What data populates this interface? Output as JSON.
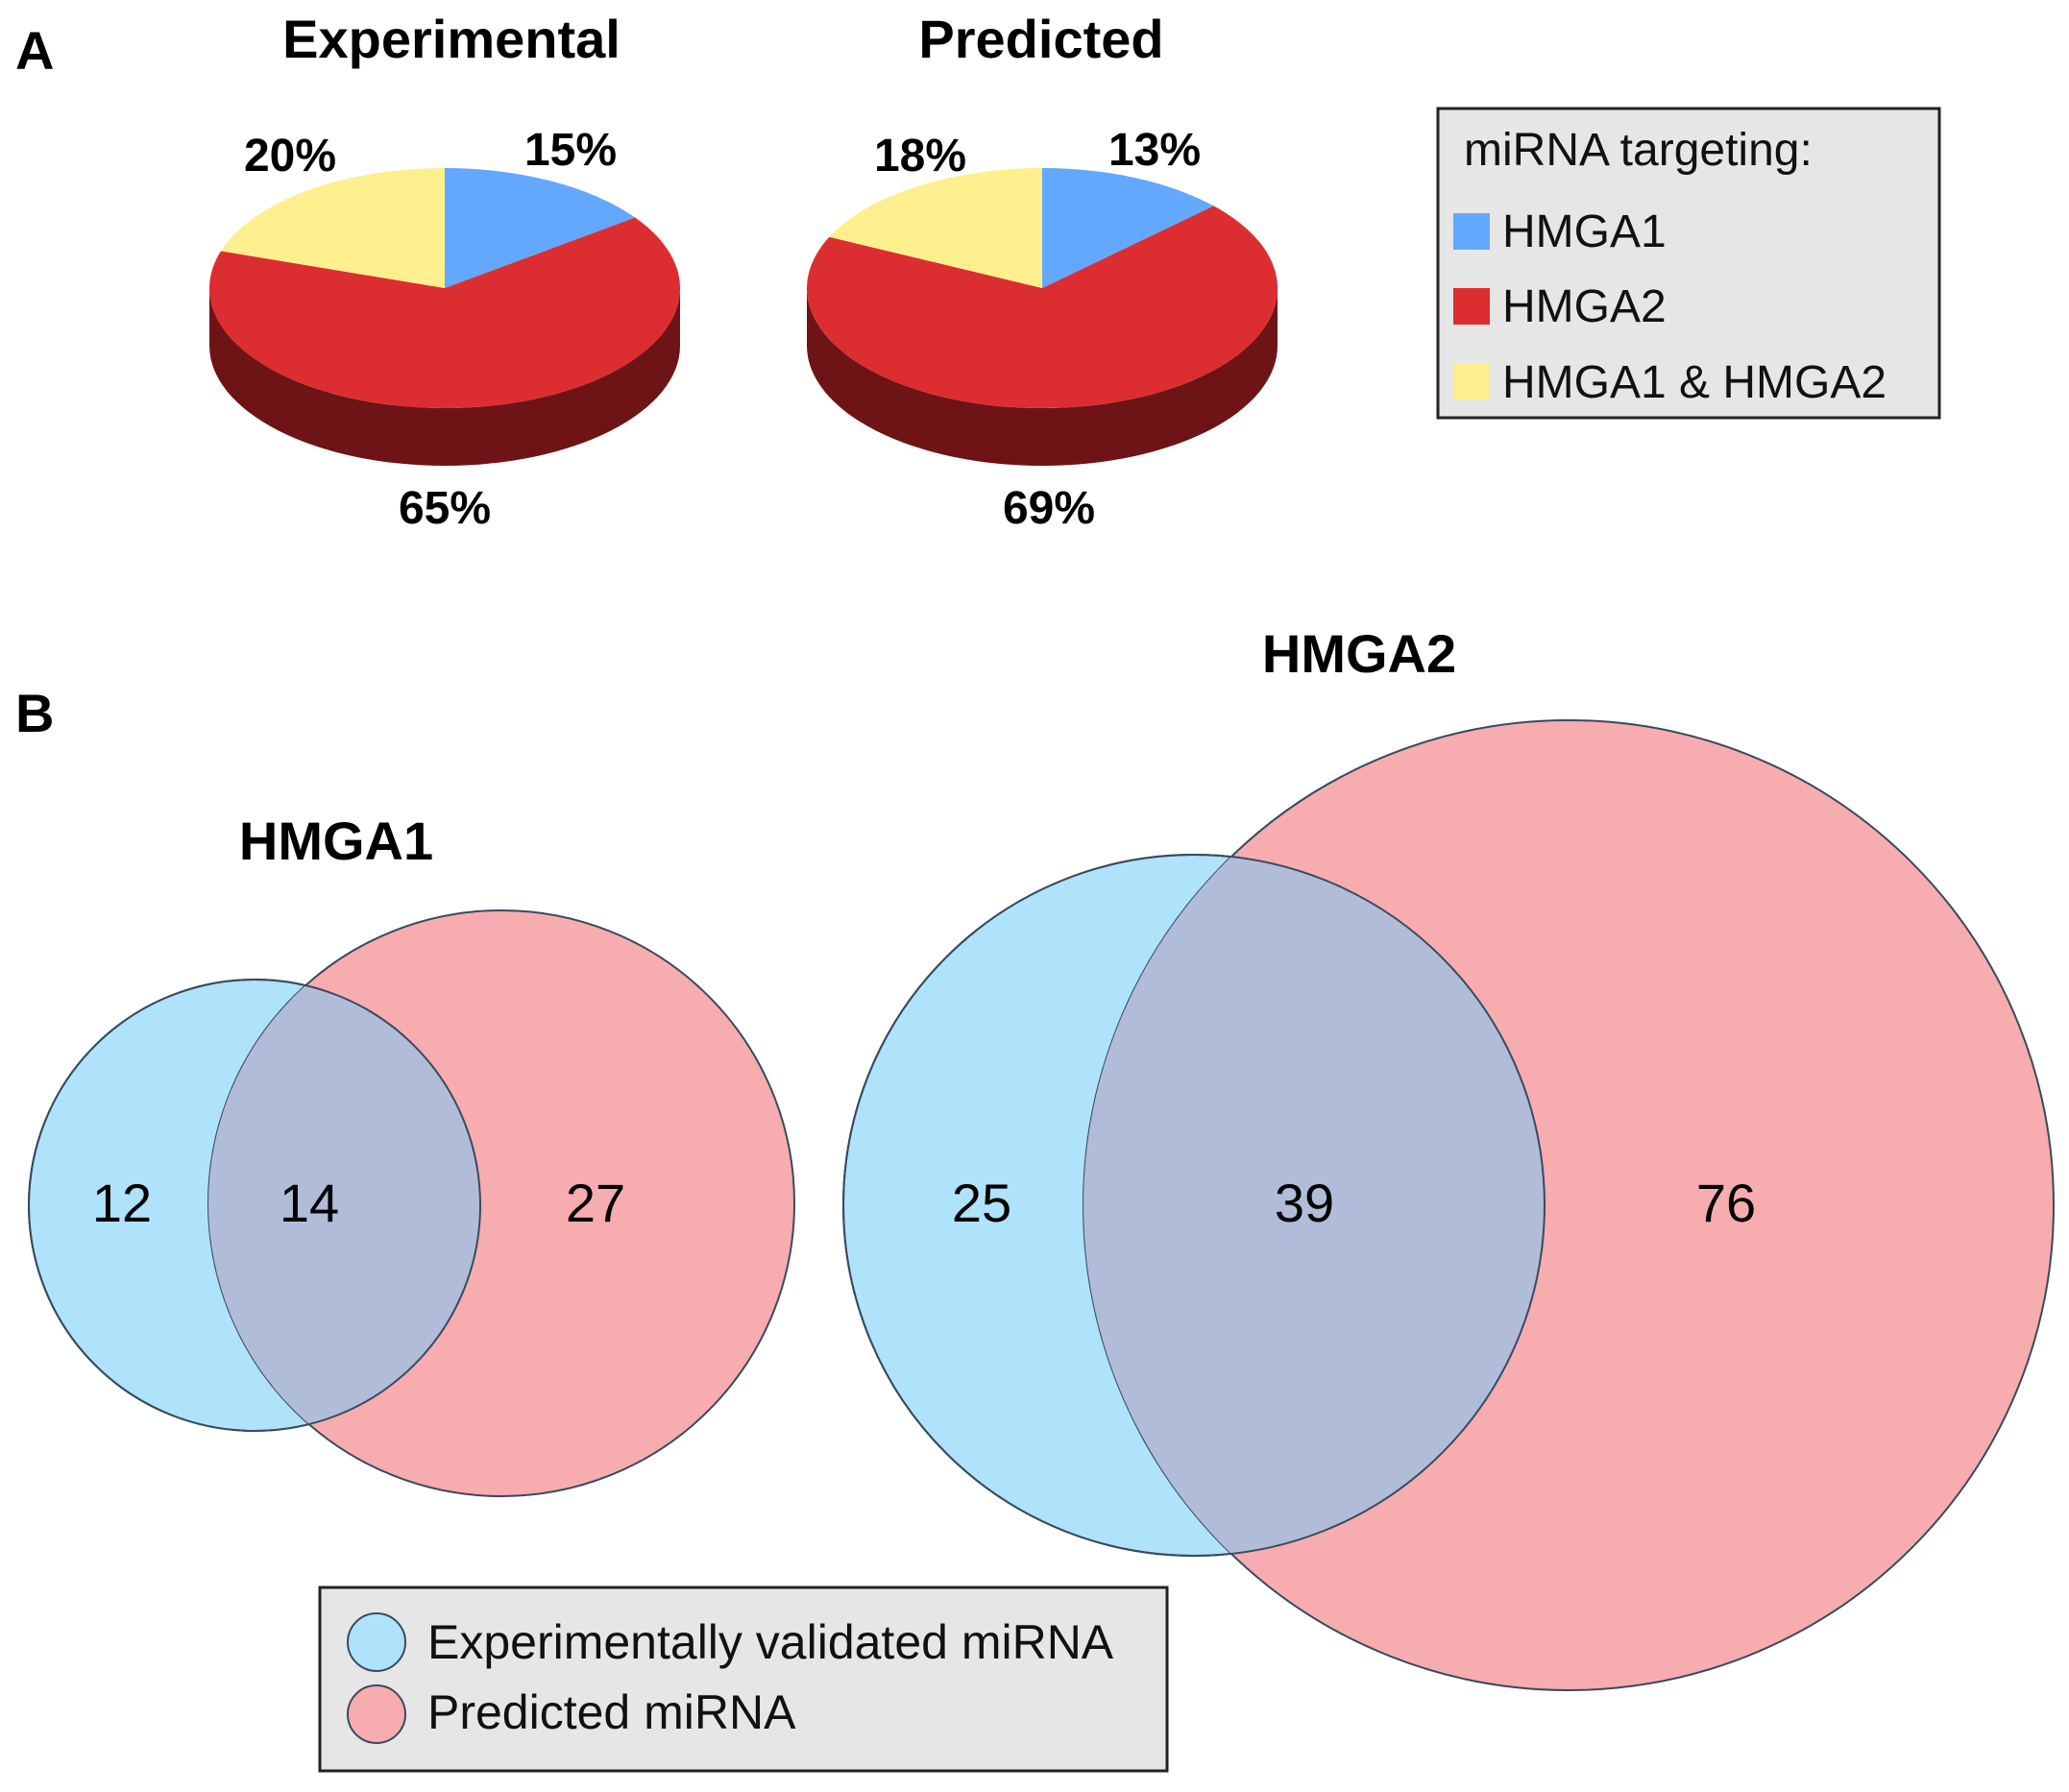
{
  "panel_a": {
    "label": "A",
    "legend": {
      "title": "miRNA targeting:",
      "items": [
        {
          "label": "HMGA1",
          "color": "#63a8ff"
        },
        {
          "label": "HMGA2",
          "color": "#dc2e31"
        },
        {
          "label": "HMGA1 & HMGA2",
          "color": "#fdef8e"
        }
      ]
    }
  },
  "panel_b": {
    "label": "B",
    "legend": {
      "items": [
        {
          "label": "Experimentally validated miRNA",
          "color": "#aee3fb"
        },
        {
          "label": "Predicted miRNA",
          "color": "#f7acb0"
        }
      ]
    }
  },
  "colors": {
    "hmga1": "#63a8ff",
    "hmga2": "#dc2e31",
    "hmga2_side": "#6e1417",
    "both": "#fdef8e",
    "venn_experimental": "#aee3fb",
    "venn_predicted": "#f7acb0",
    "venn_overlap": "#b0bcd8",
    "legend_bg": "#e6e6e6"
  },
  "chart_data": [
    {
      "type": "pie",
      "title": "Experimental",
      "categories": [
        "HMGA1",
        "HMGA2",
        "HMGA1 & HMGA2"
      ],
      "values": [
        15,
        65,
        20
      ],
      "value_labels": [
        "15%",
        "65%",
        "20%"
      ]
    },
    {
      "type": "pie",
      "title": "Predicted",
      "categories": [
        "HMGA1",
        "HMGA2",
        "HMGA1 & HMGA2"
      ],
      "values": [
        13,
        69,
        18
      ],
      "value_labels": [
        "13%",
        "69%",
        "18%"
      ]
    },
    {
      "type": "venn",
      "title": "HMGA1",
      "sets": [
        "Experimentally validated miRNA",
        "Predicted miRNA"
      ],
      "only_experimental": 12,
      "overlap": 14,
      "only_predicted": 27
    },
    {
      "type": "venn",
      "title": "HMGA2",
      "sets": [
        "Experimentally validated miRNA",
        "Predicted miRNA"
      ],
      "only_experimental": 25,
      "overlap": 39,
      "only_predicted": 76
    }
  ]
}
